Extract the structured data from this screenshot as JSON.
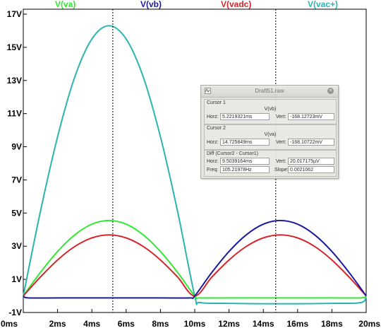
{
  "legend": [
    {
      "label": "V(va)",
      "color": "#33e833"
    },
    {
      "label": "V(vb)",
      "color": "#1b1b9c"
    },
    {
      "label": "V(vadc)",
      "color": "#d4262c"
    },
    {
      "label": "V(vac+)",
      "color": "#2bb5b1"
    }
  ],
  "chart_data": {
    "type": "line",
    "x_unit": "ms",
    "y_unit": "V",
    "xlim": [
      0,
      20
    ],
    "ylim": [
      -1,
      17.3
    ],
    "x_ticks": [
      "0ms",
      "2ms",
      "4ms",
      "6ms",
      "8ms",
      "10ms",
      "12ms",
      "14ms",
      "16ms",
      "18ms",
      "20ms"
    ],
    "x_tick_values": [
      0,
      2,
      4,
      6,
      8,
      10,
      12,
      14,
      16,
      18,
      20
    ],
    "y_ticks": [
      "-1V",
      "1V",
      "3V",
      "5V",
      "7V",
      "9V",
      "11V",
      "13V",
      "15V",
      "17V"
    ],
    "y_tick_values": [
      -1,
      1,
      3,
      5,
      7,
      9,
      11,
      13,
      15,
      17
    ],
    "series": [
      {
        "name": "V(vac+)",
        "color": "#2bb5b1",
        "x": [
          0,
          1,
          2,
          3,
          4,
          5,
          6,
          7,
          8,
          9,
          10,
          10.3,
          12,
          14,
          16,
          18,
          19.7,
          20
        ],
        "y": [
          0,
          5.1,
          9.6,
          13.2,
          15.5,
          16.3,
          15.5,
          13.2,
          9.6,
          5.1,
          0,
          -0.4,
          -0.45,
          -0.47,
          -0.47,
          -0.45,
          -0.4,
          0
        ]
      },
      {
        "name": "V(va)",
        "color": "#33e833",
        "x": [
          0,
          1,
          2,
          3,
          4,
          5,
          6,
          7,
          8,
          9,
          10,
          10.3,
          12,
          14,
          16,
          18,
          19.7,
          20
        ],
        "y": [
          0,
          1.42,
          2.68,
          3.68,
          4.33,
          4.55,
          4.33,
          3.68,
          2.68,
          1.42,
          0,
          -0.12,
          -0.12,
          -0.12,
          -0.12,
          -0.12,
          -0.12,
          0
        ]
      },
      {
        "name": "V(vadc)",
        "color": "#d4262c",
        "x": [
          0,
          1,
          2,
          3,
          4,
          5,
          6,
          7,
          8,
          9,
          10,
          11,
          12,
          13,
          14,
          15,
          16,
          17,
          18,
          19,
          20
        ],
        "y": [
          0,
          1.14,
          2.17,
          2.98,
          3.5,
          3.68,
          3.5,
          2.98,
          2.17,
          1.14,
          0,
          1.14,
          2.17,
          2.98,
          3.5,
          3.68,
          3.5,
          2.98,
          2.17,
          1.14,
          0
        ]
      },
      {
        "name": "V(vb)",
        "color": "#1b1b9c",
        "x": [
          0,
          0.3,
          2,
          4,
          6,
          8,
          9.7,
          10,
          11,
          12,
          13,
          14,
          15,
          16,
          17,
          18,
          19,
          20
        ],
        "y": [
          0,
          -0.12,
          -0.12,
          -0.12,
          -0.12,
          -0.12,
          -0.12,
          0,
          1.42,
          2.68,
          3.68,
          4.33,
          4.55,
          4.33,
          3.68,
          2.68,
          1.42,
          0
        ]
      }
    ],
    "cursors": [
      {
        "name": "Cursor 1",
        "x": 5.2219321
      },
      {
        "name": "Cursor 2",
        "x": 14.725849
      }
    ]
  },
  "dialog": {
    "title": "Draft51.raw",
    "cursor1": {
      "label": "Cursor 1",
      "trace": "V(vb)",
      "horz_label": "Horz:",
      "horz": "5.2219321ms",
      "vert_label": "Vert:",
      "vert": "-168.12723mV"
    },
    "cursor2": {
      "label": "Cursor 2",
      "trace": "V(va)",
      "horz_label": "Horz:",
      "horz": "14.725849ms",
      "vert_label": "Vert:",
      "vert": "-168.10722mV"
    },
    "diff": {
      "label": "Diff (Cursor2 - Cursor1)",
      "horz_label": "Horz:",
      "horz": "9.5039164ms",
      "vert_label": "Vert:",
      "vert": "20.017175µV",
      "freq_label": "Freq:",
      "freq": "105.21978Hz",
      "slope_label": "Slope:",
      "slope": "0.0021062"
    }
  }
}
